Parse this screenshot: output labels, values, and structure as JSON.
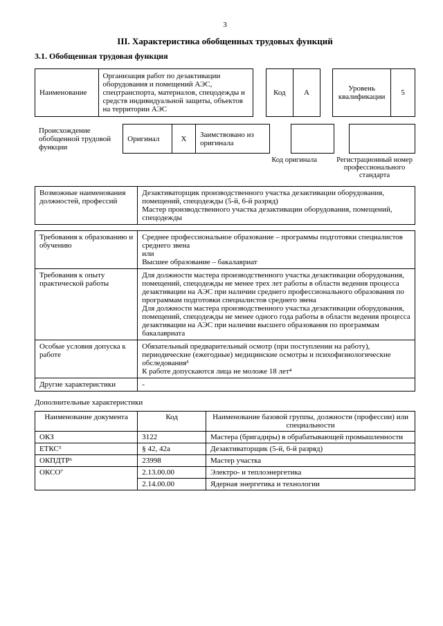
{
  "page_number": "3",
  "heading": "III. Характеристика обобщенных трудовых функций",
  "subheading": "3.1. Обобщенная трудовая функция",
  "row1": {
    "name_label": "Наименование",
    "name_value": "Организация работ по дезактивации оборудования и помещений АЭС, спецтранспорта, материалов, спецодежды и средств индивидуальной защиты, объектов на территории АЭС",
    "code_label": "Код",
    "code_value": "A",
    "level_label": "Уровень квалификации",
    "level_value": "5"
  },
  "origin": {
    "label": "Происхождение обобщенной трудовой функции",
    "orig": "Оригинал",
    "orig_mark": "X",
    "borrowed": "Заимствовано из оригинала",
    "code_orig": "Код оригинала",
    "reg_num": "Регистрационный номер профессионального стандарта"
  },
  "main_rows": [
    {
      "l": "Возможные наименования должностей, профессий",
      "r": "Дезактиваторщик производственного участка дезактивации оборудования, помещений, спецодежды (5-й, 6-й разряд)\nМастер производственного участка дезактивации оборудования, помещений, спецодежды"
    },
    {
      "l": "Требования к образованию и обучению",
      "r": "Среднее профессиональное образование – программы подготовки специалистов среднего звена\nили\nВысшее образование – бакалавриат"
    },
    {
      "l": "Требования к опыту практической работы",
      "r": "Для должности мастера производственного участка дезактивации оборудования, помещений, спецодежды не менее трех лет работы в области ведения процесса дезактивации на АЭС при наличии среднего профессионального образования по программам подготовки специалистов среднего звена\nДля должности мастера производственного участка дезактивации оборудования, помещений, спецодежды  не менее одного года работы в области ведения процесса дезактивации на АЭС при наличии высшего образования по программам бакалавриата"
    },
    {
      "l": "Особые условия допуска к работе",
      "r": "Обязательный предварительный осмотр (при поступлении на работу), периодические (ежегодные) медицинские осмотры и психофизиологические обследования³\nК работе допускаются лица не моложе 18 лет⁴"
    },
    {
      "l": "Другие характеристики",
      "r": "-"
    }
  ],
  "addl_heading": "Дополнительные характеристики",
  "addl": {
    "headers": [
      "Наименование документа",
      "Код",
      "Наименование базовой группы, должности (профессии) или специальности"
    ],
    "rows": [
      [
        "ОКЗ",
        "3122",
        "Мастера (бригадиры) в обрабатывающей промышленности"
      ],
      [
        "ЕТКС⁵",
        "§ 42, 42а",
        "Дезактиваторщик (5-й, 6-й разряд)"
      ],
      [
        "ОКПДТР⁶",
        "23998",
        "Мастер участка"
      ],
      [
        "ОКСО⁷",
        "2.13.00.00",
        "Электро- и теплоэнергетика"
      ],
      [
        "",
        "2.14.00.00",
        "Ядерная энергетика и технологии"
      ]
    ]
  }
}
